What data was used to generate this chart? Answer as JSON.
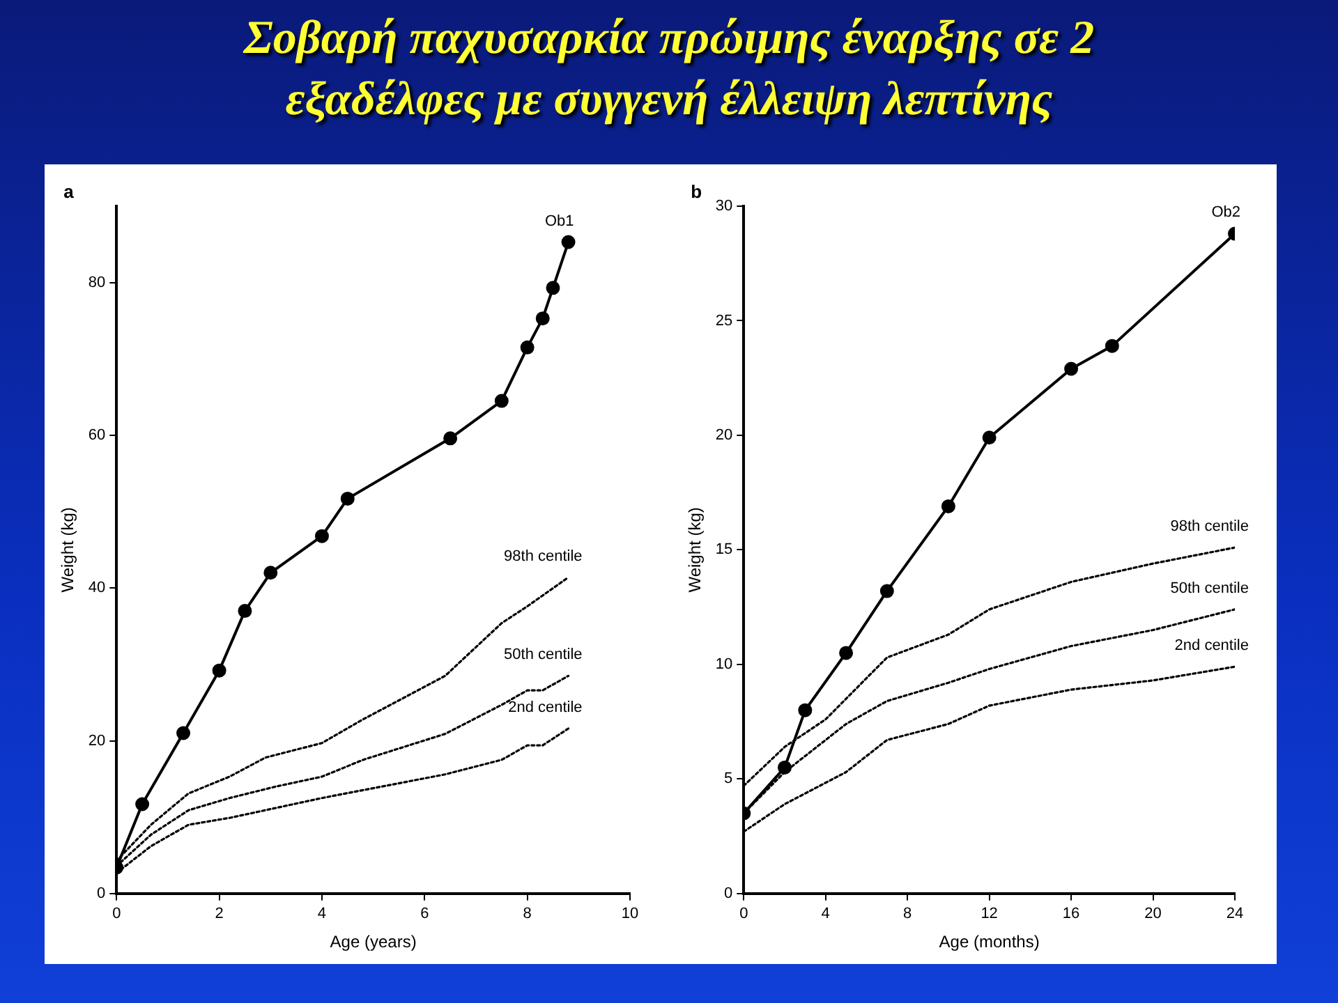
{
  "chart_data": [
    {
      "type": "line",
      "title": "Σοβαρή παχυσαρκία πρώιμης έναρξης σε 2 εξαδέλφες με συγγενή έλλειψη λεπτίνης",
      "xlabel": "Age (years)",
      "ylabel": "Weight (kg)",
      "annotations": [
        "a"
      ],
      "xlim": [
        0,
        10
      ],
      "xticks": [
        0,
        2,
        4,
        6,
        8,
        10
      ],
      "ylim": [
        0,
        90
      ],
      "yticks": [
        0,
        20,
        40,
        60,
        80
      ],
      "grid": false,
      "legend": false,
      "series": [
        {
          "name": "Ob1",
          "color": "#000000",
          "marker": "circle",
          "line_style": "solid",
          "x": [
            0,
            0.5,
            1.3,
            2,
            2.5,
            3,
            4,
            4.5,
            6.5,
            7.5,
            8,
            8.3,
            8.5,
            8.8
          ],
          "values": [
            3.4,
            11.7,
            21,
            29.2,
            37,
            42,
            46.8,
            51.7,
            59.6,
            64.5,
            71.5,
            75.3,
            79.3,
            85.3
          ]
        },
        {
          "name": "98th centile",
          "color": "#000000",
          "marker": "none",
          "line_style": "dotted",
          "x": [
            0,
            0.67,
            1.4,
            2.2,
            2.9,
            4,
            4.8,
            6.4,
            7.5,
            8,
            8.8
          ],
          "values": [
            4.3,
            9,
            13.1,
            15.3,
            17.8,
            19.7,
            22.8,
            28.5,
            35.4,
            37.6,
            41.4
          ]
        },
        {
          "name": "50th centile",
          "color": "#000000",
          "marker": "none",
          "line_style": "dotted",
          "x": [
            0,
            0.67,
            1.4,
            2.2,
            3.1,
            4,
            4.8,
            6.4,
            7.5,
            8,
            8.3,
            8.8
          ],
          "values": [
            3.6,
            7.7,
            10.9,
            12.5,
            14,
            15.3,
            17.5,
            20.9,
            24.7,
            26.6,
            26.6,
            28.5
          ]
        },
        {
          "name": "2nd centile",
          "color": "#000000",
          "marker": "none",
          "line_style": "dotted",
          "x": [
            0,
            0.67,
            1.4,
            2.2,
            3.1,
            4,
            6.4,
            7.5,
            8,
            8.3,
            8.8
          ],
          "values": [
            2.7,
            6.2,
            9,
            9.9,
            11.2,
            12.5,
            15.6,
            17.5,
            19.4,
            19.4,
            21.6
          ]
        }
      ]
    },
    {
      "type": "line",
      "xlabel": "Age (months)",
      "ylabel": "Weight (kg)",
      "annotations": [
        "b"
      ],
      "xlim": [
        0,
        24
      ],
      "xticks": [
        0,
        4,
        8,
        12,
        16,
        20,
        24
      ],
      "ylim": [
        0,
        30
      ],
      "yticks": [
        0,
        5,
        10,
        15,
        20,
        25,
        30
      ],
      "grid": false,
      "legend": false,
      "series": [
        {
          "name": "Ob2",
          "color": "#000000",
          "marker": "circle",
          "line_style": "solid",
          "x": [
            0,
            2,
            3,
            5,
            7,
            10,
            12,
            16,
            18,
            24
          ],
          "values": [
            3.5,
            5.5,
            8.0,
            10.5,
            13.2,
            16.9,
            19.9,
            22.9,
            23.9,
            28.8
          ]
        },
        {
          "name": "98th centile",
          "color": "#000000",
          "marker": "none",
          "line_style": "dotted",
          "x": [
            0,
            2,
            4,
            7,
            10,
            12,
            16,
            20,
            24
          ],
          "values": [
            4.7,
            6.4,
            7.6,
            10.3,
            11.3,
            12.4,
            13.6,
            14.4,
            15.1
          ]
        },
        {
          "name": "50th centile",
          "color": "#000000",
          "marker": "none",
          "line_style": "dotted",
          "x": [
            0,
            2,
            5,
            7,
            10,
            12,
            16,
            20,
            24
          ],
          "values": [
            3.5,
            5.3,
            7.4,
            8.4,
            9.2,
            9.8,
            10.8,
            11.5,
            12.4
          ]
        },
        {
          "name": "2nd centile",
          "color": "#000000",
          "marker": "none",
          "line_style": "dotted",
          "x": [
            0,
            2,
            5,
            7,
            10,
            12,
            16,
            20,
            24
          ],
          "values": [
            2.7,
            3.9,
            5.3,
            6.7,
            7.4,
            8.2,
            8.9,
            9.3,
            9.9
          ]
        }
      ]
    }
  ]
}
